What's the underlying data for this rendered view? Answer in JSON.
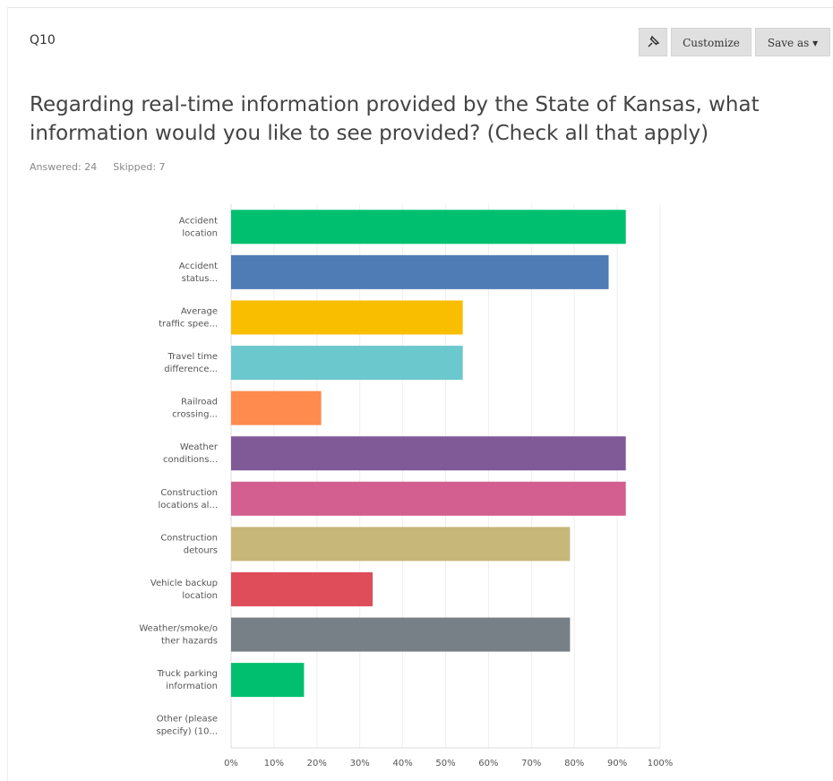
{
  "header": {
    "question": "Q10",
    "buttons": [
      "Customize",
      "Save as"
    ]
  },
  "chart_data": {
    "type": "hbar",
    "title": [
      "Regarding real-time information provided by the State of Kansas, what",
      "information would you like to see provided? (Check all that apply)"
    ],
    "stats": [
      "Answered: 24",
      "Skipped: 7"
    ],
    "categories": [
      [
        "Accident",
        "location"
      ],
      [
        "Accident",
        "status..."
      ],
      [
        "Average",
        "traffic spee..."
      ],
      [
        "Travel time",
        "difference..."
      ],
      [
        "Railroad",
        "crossing..."
      ],
      [
        "Weather",
        "conditions..."
      ],
      [
        "Construction",
        "locations al..."
      ],
      [
        "Construction",
        "detours"
      ],
      [
        "Vehicle backup",
        "location"
      ],
      [
        "Weather/smoke/o",
        "ther hazards"
      ],
      [
        "Truck parking",
        "information"
      ],
      [
        "Other (please",
        "specify) (10..."
      ]
    ],
    "values": [
      92,
      88,
      54,
      54,
      21,
      92,
      92,
      79,
      33,
      79,
      17,
      0
    ],
    "colors": [
      "#00bf6f",
      "#507cb6",
      "#f9be00",
      "#6bc8cd",
      "#ff8b4f",
      "#7f5a96",
      "#d25f90",
      "#c7b879",
      "#de4d59",
      "#768086",
      "#00bf6f",
      "#00bf6f"
    ],
    "xlim": [
      0,
      100
    ],
    "xticks": [
      {
        "value": 0,
        "label": "0%"
      },
      {
        "value": 10,
        "label": "10%"
      },
      {
        "value": 20,
        "label": "20%"
      },
      {
        "value": 30,
        "label": "30%"
      },
      {
        "value": 40,
        "label": "40%"
      },
      {
        "value": 50,
        "label": "50%"
      },
      {
        "value": 60,
        "label": "60%"
      },
      {
        "value": 70,
        "label": "70%"
      },
      {
        "value": 80,
        "label": "80%"
      },
      {
        "value": 90,
        "label": "90%"
      },
      {
        "value": 100,
        "label": "100%"
      }
    ],
    "grid": true
  }
}
